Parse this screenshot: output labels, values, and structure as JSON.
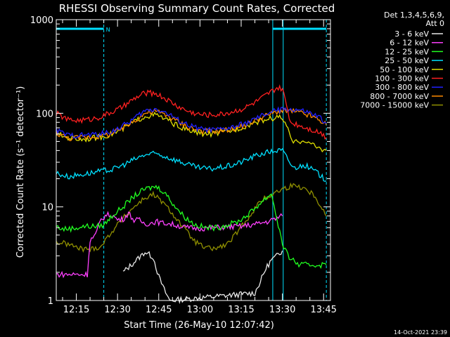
{
  "chart_data": {
    "type": "line",
    "title": "RHESSI Observing Summary Count Rates, Corrected",
    "ylabel": "Corrected Count Rate (s⁻¹ detector⁻¹)",
    "xlabel": "Start Time (26-May-10 12:07:42)",
    "yscale": "log",
    "ylim": [
      1,
      1000
    ],
    "xlim_minutes_after_12_00": [
      7.7,
      107.5
    ],
    "y_ticks": [
      "1",
      "10",
      "100",
      "1000"
    ],
    "x_ticks": [
      {
        "t": 15,
        "label": "12:15"
      },
      {
        "t": 30,
        "label": "12:30"
      },
      {
        "t": 45,
        "label": "12:45"
      },
      {
        "t": 60,
        "label": "13:00"
      },
      {
        "t": 75,
        "label": "13:15"
      },
      {
        "t": 90,
        "label": "13:30"
      },
      {
        "t": 105,
        "label": "13:45"
      }
    ],
    "legend_header": [
      "Det 1,3,4,5,6,9,",
      "Att 0"
    ],
    "legend_position": "right",
    "footer": "14-Oct-2021 23:39",
    "night_marker_label": "N",
    "night_intervals": [
      [
        7.7,
        25
      ],
      [
        86.5,
        106
      ]
    ],
    "vlines_dashed": [
      25,
      106
    ],
    "vlines_solid": [
      7.7,
      86.5,
      90.3
    ],
    "series": [
      {
        "name": "3 - 6 keV",
        "color": "#e8e8e8",
        "points": [
          [
            32,
            2.0
          ],
          [
            35,
            2.4
          ],
          [
            38,
            2.9
          ],
          [
            40,
            3.3
          ],
          [
            43,
            2.9
          ],
          [
            45,
            1.8
          ],
          [
            47,
            1.3
          ],
          [
            49,
            1.0
          ],
          [
            80,
            1.2
          ],
          [
            82,
            1.6
          ],
          [
            84,
            2.2
          ],
          [
            86,
            2.7
          ],
          [
            88,
            3.0
          ],
          [
            90,
            3.4
          ]
        ]
      },
      {
        "name": "6 - 12 keV",
        "color": "#ff40ff",
        "points": [
          [
            7.7,
            1.9
          ],
          [
            16,
            1.9
          ],
          [
            19,
            1.9
          ],
          [
            20,
            4.4
          ],
          [
            22,
            5.0
          ],
          [
            24,
            7.3
          ],
          [
            26,
            8.2
          ],
          [
            28,
            8.2
          ],
          [
            30,
            7.3
          ],
          [
            32,
            7.4
          ],
          [
            34,
            8.6
          ],
          [
            36,
            7.2
          ],
          [
            38,
            7.2
          ],
          [
            40,
            6.6
          ],
          [
            42,
            6.7
          ],
          [
            44,
            7.0
          ],
          [
            46,
            6.7
          ],
          [
            48,
            6.7
          ],
          [
            50,
            6.5
          ],
          [
            52,
            6.3
          ],
          [
            55,
            6.0
          ],
          [
            60,
            5.9
          ],
          [
            65,
            6.0
          ],
          [
            70,
            6.1
          ],
          [
            75,
            6.2
          ],
          [
            80,
            6.5
          ],
          [
            85,
            7.0
          ],
          [
            90,
            8.0
          ]
        ]
      },
      {
        "name": "12 - 25 keV",
        "color": "#20ff20",
        "points": [
          [
            7.7,
            6.2
          ],
          [
            10,
            5.8
          ],
          [
            14,
            5.9
          ],
          [
            18,
            6.2
          ],
          [
            22,
            6.2
          ],
          [
            25,
            6.4
          ],
          [
            28,
            8.0
          ],
          [
            32,
            10.0
          ],
          [
            36,
            13.0
          ],
          [
            40,
            15.5
          ],
          [
            44,
            16.5
          ],
          [
            47,
            14.5
          ],
          [
            50,
            11.0
          ],
          [
            54,
            8.0
          ],
          [
            58,
            6.5
          ],
          [
            62,
            6.0
          ],
          [
            66,
            6.0
          ],
          [
            70,
            6.4
          ],
          [
            74,
            7.0
          ],
          [
            78,
            8.5
          ],
          [
            82,
            11.0
          ],
          [
            86,
            14.0
          ],
          [
            90,
            4.0
          ],
          [
            92,
            3.0
          ],
          [
            96,
            2.4
          ],
          [
            100,
            2.4
          ],
          [
            106,
            2.4
          ]
        ]
      },
      {
        "name": "25 - 50 keV",
        "color": "#00e0ff",
        "points": [
          [
            7.7,
            23
          ],
          [
            12,
            21
          ],
          [
            16,
            22
          ],
          [
            20,
            23
          ],
          [
            24,
            24
          ],
          [
            28,
            25
          ],
          [
            32,
            28
          ],
          [
            36,
            32
          ],
          [
            40,
            36
          ],
          [
            44,
            37
          ],
          [
            48,
            34
          ],
          [
            52,
            31
          ],
          [
            56,
            28
          ],
          [
            60,
            26
          ],
          [
            64,
            25.5
          ],
          [
            68,
            26.5
          ],
          [
            72,
            28
          ],
          [
            76,
            31
          ],
          [
            80,
            35
          ],
          [
            84,
            38
          ],
          [
            88,
            40
          ],
          [
            90,
            40
          ],
          [
            94,
            26
          ],
          [
            98,
            28
          ],
          [
            102,
            24
          ],
          [
            106,
            19
          ]
        ]
      },
      {
        "name": "50 - 100 keV",
        "color": "#e0e000",
        "points": [
          [
            7.7,
            60
          ],
          [
            12,
            55
          ],
          [
            16,
            53
          ],
          [
            20,
            54
          ],
          [
            24,
            56
          ],
          [
            28,
            60
          ],
          [
            32,
            68
          ],
          [
            36,
            81
          ],
          [
            40,
            93
          ],
          [
            44,
            96
          ],
          [
            48,
            85
          ],
          [
            52,
            73
          ],
          [
            56,
            65
          ],
          [
            60,
            61
          ],
          [
            64,
            60
          ],
          [
            68,
            62
          ],
          [
            72,
            66
          ],
          [
            76,
            72
          ],
          [
            80,
            80
          ],
          [
            84,
            86
          ],
          [
            88,
            90
          ],
          [
            90,
            90
          ],
          [
            94,
            48
          ],
          [
            98,
            52
          ],
          [
            102,
            44
          ],
          [
            106,
            40
          ]
        ]
      },
      {
        "name": "100 - 300 keV",
        "color": "#ff2020",
        "points": [
          [
            7.7,
            100
          ],
          [
            12,
            85
          ],
          [
            16,
            84
          ],
          [
            20,
            86
          ],
          [
            24,
            92
          ],
          [
            28,
            103
          ],
          [
            32,
            117
          ],
          [
            36,
            142
          ],
          [
            40,
            165
          ],
          [
            44,
            163
          ],
          [
            48,
            140
          ],
          [
            52,
            118
          ],
          [
            56,
            104
          ],
          [
            60,
            97
          ],
          [
            64,
            96
          ],
          [
            68,
            98
          ],
          [
            72,
            104
          ],
          [
            76,
            113
          ],
          [
            80,
            130
          ],
          [
            84,
            155
          ],
          [
            88,
            185
          ],
          [
            90,
            182
          ],
          [
            93,
            80
          ],
          [
            96,
            75
          ],
          [
            100,
            68
          ],
          [
            104,
            62
          ],
          [
            106,
            55
          ]
        ]
      },
      {
        "name": "300 - 800 keV",
        "color": "#2020ff",
        "points": [
          [
            7.7,
            66
          ],
          [
            12,
            58
          ],
          [
            16,
            58
          ],
          [
            20,
            59
          ],
          [
            24,
            60
          ],
          [
            28,
            64
          ],
          [
            32,
            73
          ],
          [
            36,
            88
          ],
          [
            40,
            106
          ],
          [
            44,
            112
          ],
          [
            48,
            100
          ],
          [
            52,
            85
          ],
          [
            56,
            74
          ],
          [
            60,
            68
          ],
          [
            64,
            66
          ],
          [
            68,
            67
          ],
          [
            72,
            71
          ],
          [
            76,
            77
          ],
          [
            80,
            86
          ],
          [
            84,
            98
          ],
          [
            88,
            108
          ],
          [
            92,
            110
          ],
          [
            96,
            108
          ],
          [
            100,
            100
          ],
          [
            104,
            88
          ],
          [
            106,
            78
          ]
        ]
      },
      {
        "name": "800 - 7000 keV",
        "color": "#ff8a00",
        "points": [
          [
            7.7,
            62
          ],
          [
            12,
            54
          ],
          [
            16,
            55
          ],
          [
            20,
            56
          ],
          [
            24,
            57
          ],
          [
            28,
            61
          ],
          [
            32,
            69
          ],
          [
            36,
            83
          ],
          [
            40,
            100
          ],
          [
            44,
            105
          ],
          [
            48,
            95
          ],
          [
            52,
            81
          ],
          [
            56,
            71
          ],
          [
            60,
            65
          ],
          [
            64,
            64
          ],
          [
            68,
            65
          ],
          [
            72,
            68
          ],
          [
            76,
            74
          ],
          [
            80,
            83
          ],
          [
            84,
            94
          ],
          [
            88,
            104
          ],
          [
            92,
            106
          ],
          [
            96,
            102
          ],
          [
            100,
            94
          ],
          [
            104,
            83
          ],
          [
            106,
            75
          ]
        ]
      },
      {
        "name": "7000 - 15000 keV",
        "color": "#909000",
        "points": [
          [
            7.7,
            4.2
          ],
          [
            12,
            4.0
          ],
          [
            16,
            3.6
          ],
          [
            20,
            3.5
          ],
          [
            24,
            3.8
          ],
          [
            28,
            5.5
          ],
          [
            32,
            7.5
          ],
          [
            36,
            10.0
          ],
          [
            40,
            12.5
          ],
          [
            43,
            13.5
          ],
          [
            46,
            11.5
          ],
          [
            50,
            8.5
          ],
          [
            54,
            6.0
          ],
          [
            58,
            4.3
          ],
          [
            62,
            3.6
          ],
          [
            66,
            3.6
          ],
          [
            70,
            4.0
          ],
          [
            74,
            5.5
          ],
          [
            78,
            8.0
          ],
          [
            82,
            11.5
          ],
          [
            86,
            13.5
          ],
          [
            90,
            15.5
          ],
          [
            94,
            17.0
          ],
          [
            98,
            16.0
          ],
          [
            102,
            13.0
          ],
          [
            106,
            8.0
          ]
        ]
      }
    ]
  }
}
